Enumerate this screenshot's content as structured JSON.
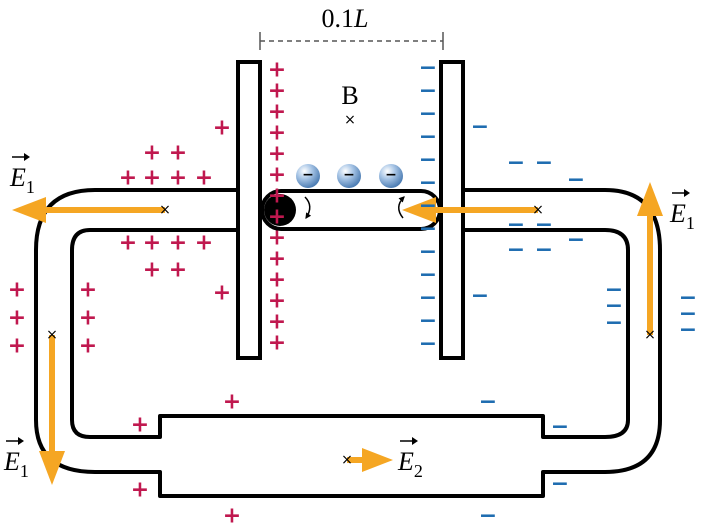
{
  "dimension_label": "0.1L",
  "dimension_label_parts": {
    "number": "0.1",
    "variable": "L"
  },
  "point_label": "B",
  "field_labels": {
    "e1_symbol": "E",
    "e1_subscript": "1",
    "e2_symbol": "E",
    "e2_subscript": "2"
  },
  "charge_symbols": {
    "positive": "+",
    "negative": "−",
    "electron": "−",
    "field_point": "×"
  },
  "colors": {
    "positive": "#c0184f",
    "negative": "#1e6cb0",
    "arrow": "#f5a623",
    "wire": "#000000",
    "electron": "#8fb3d9"
  }
}
